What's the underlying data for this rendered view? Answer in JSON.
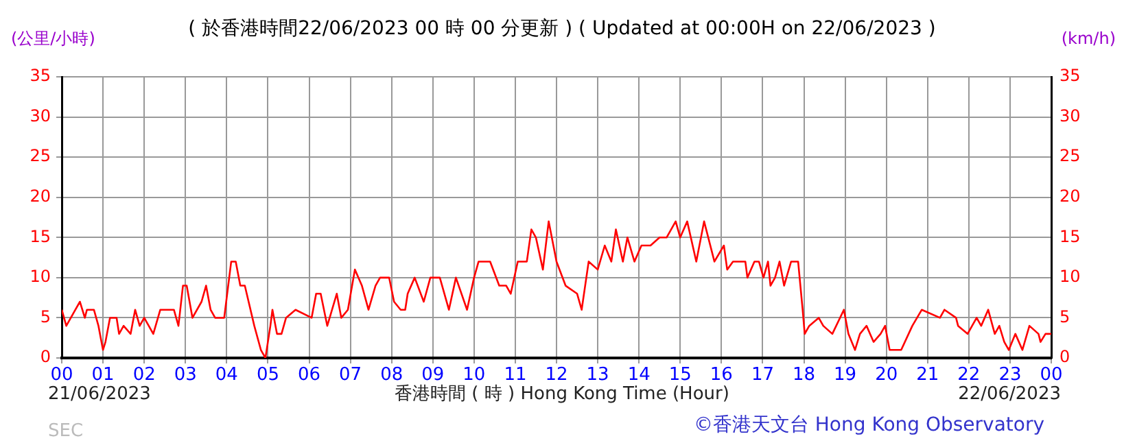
{
  "chart_data": {
    "type": "line",
    "title": "( 於香港時間22/06/2023 00 時 00 分更新 ) ( Updated at 00:00H on 22/06/2023 )",
    "xlabel": "香港時間 ( 時 ) Hong Kong Time (Hour)",
    "ylabel": "(公里/小時)",
    "y2label": "(km/h)",
    "annotations": [
      "21/06/2023",
      "22/06/2023",
      "©香港天文台 Hong Kong Observatory",
      "SEC"
    ],
    "series": [
      {
        "color": "#ff0000",
        "x": [
          0,
          0.11,
          0.22,
          0.33,
          0.44,
          0.56,
          0.61,
          0.78,
          0.89,
          1,
          1.06,
          1.17,
          1.33,
          1.39,
          1.5,
          1.67,
          1.78,
          1.89,
          2,
          2.11,
          2.22,
          2.39,
          2.72,
          2.83,
          2.94,
          3.03,
          3.17,
          3.39,
          3.5,
          3.61,
          3.72,
          3.94,
          4.11,
          4.22,
          4.33,
          4.44,
          4.67,
          4.83,
          4.94,
          5.06,
          5.11,
          5.22,
          5.33,
          5.44,
          5.67,
          6.06,
          6.17,
          6.28,
          6.44,
          6.67,
          6.78,
          6.94,
          7.11,
          7.28,
          7.44,
          7.61,
          7.72,
          7.94,
          8.06,
          8.22,
          8.33,
          8.39,
          8.56,
          8.78,
          8.94,
          9.17,
          9.39,
          9.56,
          9.83,
          10,
          10.11,
          10.39,
          10.61,
          10.78,
          10.89,
          11.06,
          11.28,
          11.39,
          11.5,
          11.67,
          11.81,
          12,
          12.22,
          12.5,
          12.61,
          12.78,
          13,
          13.17,
          13.33,
          13.44,
          13.61,
          13.72,
          13.89,
          14.06,
          14.28,
          14.5,
          14.67,
          14.89,
          15,
          15.17,
          15.39,
          15.58,
          15.83,
          16.06,
          16.14,
          16.28,
          16.58,
          16.63,
          16.8,
          16.91,
          17.02,
          17.13,
          17.19,
          17.3,
          17.41,
          17.52,
          17.69,
          17.86,
          17.97,
          18.02,
          18.13,
          18.36,
          18.47,
          18.69,
          18.97,
          19.08,
          19.24,
          19.36,
          19.52,
          19.69,
          19.86,
          19.97,
          20.08,
          20.36,
          20.63,
          20.86,
          21.3,
          21.41,
          21.69,
          21.74,
          21.97,
          22.19,
          22.3,
          22.47,
          22.63,
          22.74,
          22.86,
          22.97,
          23.13,
          23.3,
          23.47,
          23.69,
          23.74,
          23.86,
          24
        ],
        "values": [
          6,
          4,
          5,
          6,
          7,
          5,
          6,
          6,
          4,
          1,
          2,
          5,
          5,
          3,
          4,
          3,
          6,
          4,
          5,
          4,
          3,
          6,
          6,
          4,
          9,
          9,
          5,
          7,
          9,
          6,
          5,
          5,
          12,
          12,
          9,
          9,
          4,
          1,
          0,
          4,
          6,
          3,
          3,
          5,
          6,
          5,
          8,
          8,
          4,
          8,
          5,
          6,
          11,
          9,
          6,
          9,
          10,
          10,
          7,
          6,
          6,
          8,
          10,
          7,
          10,
          10,
          6,
          10,
          6,
          10,
          12,
          12,
          9,
          9,
          8,
          12,
          12,
          16,
          15,
          11,
          17,
          12,
          9,
          8,
          6,
          12,
          11,
          14,
          12,
          16,
          12,
          15,
          12,
          14,
          14,
          15,
          15,
          17,
          15,
          17,
          12,
          17,
          12,
          14,
          11,
          12,
          12,
          10,
          12,
          12,
          10,
          12,
          9,
          10,
          12,
          9,
          12,
          12,
          6,
          3,
          4,
          5,
          4,
          3,
          6,
          3,
          1,
          3,
          4,
          2,
          3,
          4,
          1,
          1,
          4,
          6,
          5,
          6,
          5,
          4,
          3,
          5,
          4,
          6,
          3,
          4,
          2,
          1,
          3,
          1,
          4,
          3,
          2,
          3,
          3
        ]
      }
    ],
    "xlim": [
      0,
      24
    ],
    "xticks": [
      {
        "value": 0,
        "label": "00"
      },
      {
        "value": 1,
        "label": "01"
      },
      {
        "value": 2,
        "label": "02"
      },
      {
        "value": 3,
        "label": "03"
      },
      {
        "value": 4,
        "label": "04"
      },
      {
        "value": 5,
        "label": "05"
      },
      {
        "value": 6,
        "label": "06"
      },
      {
        "value": 7,
        "label": "07"
      },
      {
        "value": 8,
        "label": "08"
      },
      {
        "value": 9,
        "label": "09"
      },
      10,
      11,
      12,
      13,
      14,
      15,
      16,
      17,
      18,
      19,
      20,
      21,
      22,
      23,
      {
        "value": 24,
        "label": "00"
      }
    ],
    "ylim": [
      0,
      35
    ],
    "yticks": [
      0,
      5,
      10,
      15,
      20,
      25,
      30,
      35
    ],
    "y2lim": [
      0,
      35
    ],
    "y2ticks": [
      0,
      5,
      10,
      15,
      20,
      25,
      30,
      35
    ],
    "grid": true,
    "legend": false,
    "marker": "none",
    "line_style": "solid"
  }
}
